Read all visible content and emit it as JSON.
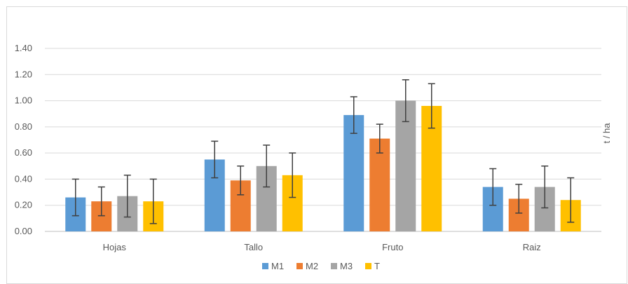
{
  "chart_data": {
    "type": "bar",
    "categories": [
      "Hojas",
      "Tallo",
      "Fruto",
      "Raiz"
    ],
    "ylabel": "t / ha",
    "ylim": [
      0,
      1.4
    ],
    "yticks": [
      "0.00",
      "0.20",
      "0.40",
      "0.60",
      "0.80",
      "1.00",
      "1.20",
      "1.40"
    ],
    "grid": true,
    "legend_position": "bottom",
    "series": [
      {
        "name": "M1",
        "color": "#5b9bd5",
        "values": [
          0.26,
          0.55,
          0.89,
          0.34
        ],
        "errors": [
          0.14,
          0.14,
          0.14,
          0.14
        ]
      },
      {
        "name": "M2",
        "color": "#ed7d31",
        "values": [
          0.23,
          0.39,
          0.71,
          0.25
        ],
        "errors": [
          0.11,
          0.11,
          0.11,
          0.11
        ]
      },
      {
        "name": "M3",
        "color": "#a5a5a5",
        "values": [
          0.27,
          0.5,
          1.0,
          0.34
        ],
        "errors": [
          0.16,
          0.16,
          0.16,
          0.16
        ]
      },
      {
        "name": "T",
        "color": "#ffc000",
        "values": [
          0.23,
          0.43,
          0.96,
          0.24
        ],
        "errors": [
          0.17,
          0.17,
          0.17,
          0.17
        ]
      }
    ]
  }
}
